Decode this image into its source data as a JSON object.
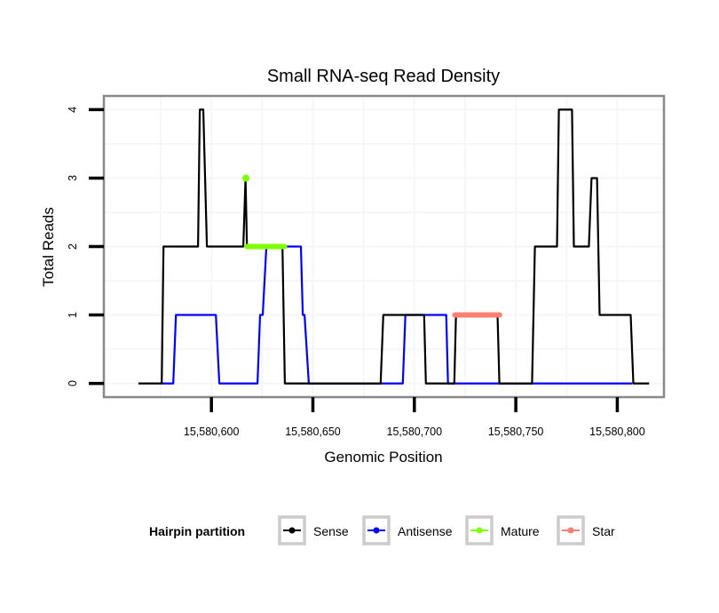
{
  "chart_data": {
    "type": "line",
    "title": "Small RNA-seq Read Density",
    "xlabel": "Genomic Position",
    "ylabel": "Total Reads",
    "xlim": [
      15580547,
      15580823
    ],
    "ylim": [
      -0.2,
      4.2
    ],
    "x_ticks": [
      15580600,
      15580650,
      15580700,
      15580750,
      15580800
    ],
    "x_tick_labels": [
      "15,580,600",
      "15,580,650",
      "15,580,700",
      "15,580,750",
      "15,580,800"
    ],
    "y_ticks": [
      0,
      1,
      2,
      3,
      4
    ],
    "y_tick_labels": [
      "0",
      "1",
      "2",
      "3",
      "4"
    ],
    "grid": true,
    "legend": {
      "title": "Hairpin partition",
      "position": "bottom",
      "entries": [
        {
          "label": "Sense",
          "color": "#000000"
        },
        {
          "label": "Antisense",
          "color": "#0000ff"
        },
        {
          "label": "Mature",
          "color": "#7fff00"
        },
        {
          "label": "Star",
          "color": "#fa8072"
        }
      ]
    },
    "series": [
      {
        "name": "Sense",
        "color": "#000000",
        "style": "line",
        "x": [
          15580564,
          15580575.5,
          15580576.4,
          15580593.4,
          15580594.3,
          15580596,
          15580597.8,
          15580615.7,
          15580616.8,
          15580617.5,
          15580635,
          15580636.2,
          15580683.4,
          15580684.7,
          15580704.8,
          15580705.7,
          15580719.7,
          15580720.5,
          15580741,
          15580741.9,
          15580758,
          15580759.4,
          15580770.3,
          15580771.2,
          15580777.7,
          15580778.6,
          15580786,
          15580787.3,
          15580790,
          15580791.3,
          15580806.6,
          15580807.9,
          15580815.7
        ],
        "y": [
          0,
          0,
          2,
          2,
          4,
          4,
          2,
          2,
          3,
          2,
          2,
          0,
          0,
          1,
          1,
          0,
          0,
          1,
          1,
          0,
          0,
          2,
          2,
          4,
          4,
          2,
          2,
          3,
          3,
          1,
          1,
          0,
          0
        ]
      },
      {
        "name": "Antisense",
        "color": "#0000ff",
        "style": "line",
        "x": [
          15580575.5,
          15580581.2,
          15580582.5,
          15580602.2,
          15580603.9,
          15580622.7,
          15580624,
          15580625.3,
          15580627.1,
          15580644.1,
          15580645,
          15580645.9,
          15580648,
          15580694.3,
          15580695.6,
          15580715.7,
          15580716.6,
          15580807.4
        ],
        "y": [
          0,
          0,
          1,
          1,
          0,
          0,
          1,
          1,
          2,
          2,
          1,
          1,
          0,
          0,
          1,
          1,
          0,
          0
        ]
      },
      {
        "name": "Mature",
        "color": "#7fff00",
        "style": "segment+point",
        "segment": {
          "x": [
            15580617.5,
            15580636
          ],
          "y": 2
        },
        "point": {
          "x": 15580617,
          "y": 3
        }
      },
      {
        "name": "Star",
        "color": "#fa8072",
        "style": "segment",
        "segment": {
          "x": [
            15580720,
            15580742
          ],
          "y": 1
        }
      }
    ]
  }
}
